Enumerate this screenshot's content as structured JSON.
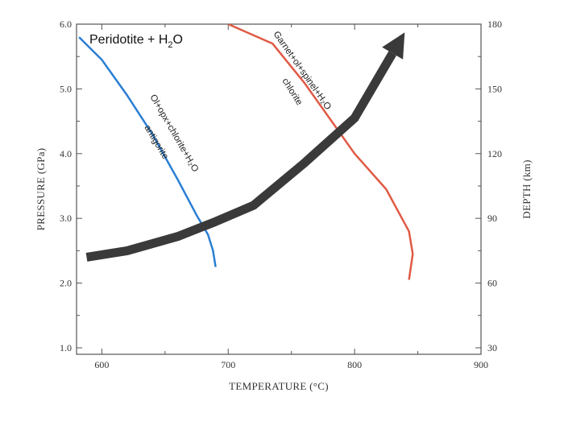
{
  "chart_data": {
    "type": "line",
    "title": "Peridotite + H",
    "title_subscript": "2",
    "title_suffix": "O",
    "xlabel": "TEMPERATURE (°C)",
    "ylabel": "PRESSURE (GPa)",
    "y2label": "DEPTH (km)",
    "xlim": [
      580,
      900
    ],
    "ylim": [
      0.9,
      6.0
    ],
    "x_ticks": [
      600,
      700,
      800,
      900
    ],
    "y_ticks": [
      "1.0",
      "2.0",
      "3.0",
      "4.0",
      "5.0",
      "6.0"
    ],
    "y2_ticks": [
      30,
      60,
      90,
      120,
      150,
      180
    ],
    "grid": false,
    "series": [
      {
        "name": "antigorite",
        "color": "#2a7fd4",
        "labels": [
          "Ol+opx+chlorite+H₂O",
          "antigorite"
        ],
        "x": [
          582,
          600,
          620,
          640,
          660,
          675,
          684,
          688,
          690
        ],
        "y": [
          5.8,
          5.45,
          4.9,
          4.3,
          3.6,
          3.05,
          2.75,
          2.5,
          2.25
        ]
      },
      {
        "name": "chlorite",
        "color": "#e05a45",
        "labels": [
          "Garnet+ol+spinel+H₂O",
          "chlorite"
        ],
        "x": [
          700,
          735,
          760,
          780,
          800,
          825,
          843,
          846,
          843
        ],
        "y": [
          6.0,
          5.7,
          5.1,
          4.55,
          4.0,
          3.45,
          2.8,
          2.45,
          2.05
        ]
      },
      {
        "name": "slab P-T path",
        "color": "#3a3a3a",
        "x": [
          588,
          620,
          660,
          690,
          720,
          760,
          800,
          830
        ],
        "y": [
          2.4,
          2.5,
          2.72,
          2.95,
          3.2,
          3.85,
          4.55,
          5.55
        ]
      }
    ]
  }
}
